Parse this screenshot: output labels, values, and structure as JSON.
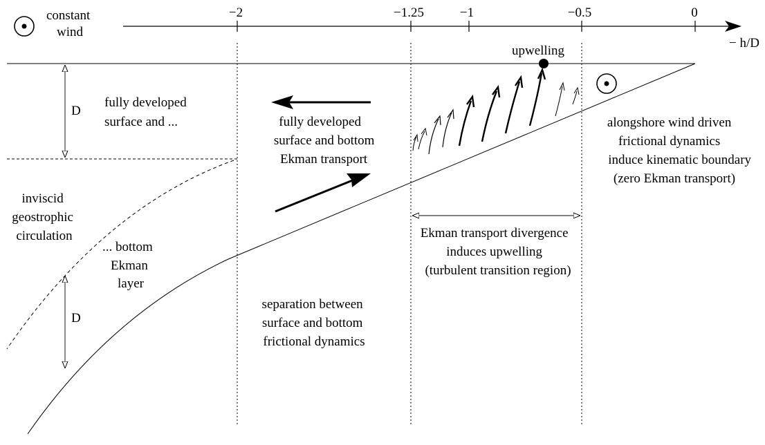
{
  "legend": {
    "symbol": "circled-dot-icon",
    "line1": "constant",
    "line2": "wind"
  },
  "axis": {
    "label": "− h/D",
    "ticks": [
      "−2",
      "−1.25",
      "−1",
      "−0.5",
      "0"
    ]
  },
  "depth_scale": {
    "upper": "D",
    "lower": "D"
  },
  "annotations": {
    "upwelling": "upwelling",
    "left_region": [
      "inviscid",
      "geostrophic",
      "circulation"
    ],
    "upper_layer": [
      "fully developed",
      "surface and ..."
    ],
    "bottom_layer": [
      "... bottom",
      "Ekman",
      "layer"
    ],
    "middle_region": [
      "fully developed",
      "surface and bottom",
      "Ekman transport"
    ],
    "separation": [
      "separation between",
      "surface and bottom",
      "frictional dynamics"
    ],
    "divergence": [
      "Ekman transport divergence",
      "induces upwelling",
      "(turbulent transition region)"
    ],
    "right_region": [
      "alongshore wind driven",
      "frictional dynamics",
      "induce kinematic boundary",
      "(zero Ekman transport)"
    ]
  },
  "colors": {
    "ink": "#000000",
    "background": "#ffffff"
  }
}
